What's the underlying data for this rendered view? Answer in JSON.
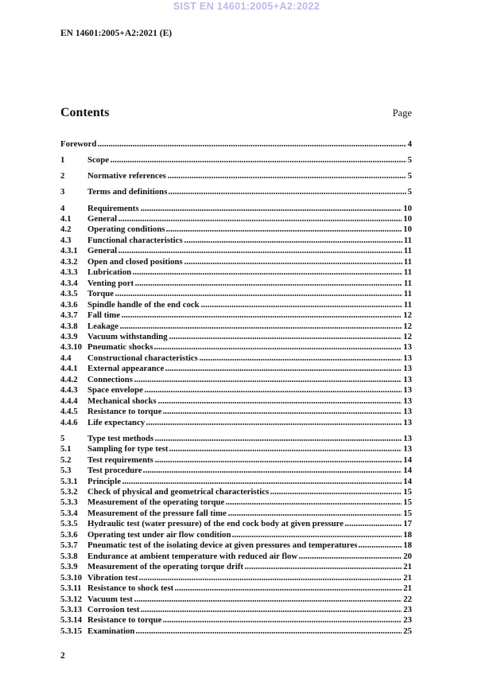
{
  "watermark": "SIST EN 14601:2005+A2:2022",
  "header": "EN 14601:2005+A2:2021 (E)",
  "contents_heading": {
    "title": "Contents",
    "page_label": "Page"
  },
  "footer": {
    "page_number": "2"
  },
  "toc": [
    {
      "num": "",
      "title": "Foreword",
      "page": "4"
    },
    {
      "num": "1",
      "title": "Scope",
      "page": "5"
    },
    {
      "num": "2",
      "title": "Normative references",
      "page": "5"
    },
    {
      "num": "3",
      "title": "Terms and definitions",
      "page": "5"
    },
    {
      "num": "4",
      "title": "Requirements",
      "page": "10"
    },
    {
      "num": "4.1",
      "title": "General",
      "page": "10"
    },
    {
      "num": "4.2",
      "title": "Operating conditions",
      "page": "10"
    },
    {
      "num": "4.3",
      "title": "Functional characteristics",
      "page": "11"
    },
    {
      "num": "4.3.1",
      "title": "General",
      "page": "11"
    },
    {
      "num": "4.3.2",
      "title": "Open and closed positions",
      "page": "11"
    },
    {
      "num": "4.3.3",
      "title": "Lubrication",
      "page": "11"
    },
    {
      "num": "4.3.4",
      "title": "Venting port",
      "page": "11"
    },
    {
      "num": "4.3.5",
      "title": "Torque",
      "page": "11"
    },
    {
      "num": "4.3.6",
      "title": "Spindle handle of the end cock",
      "page": "11"
    },
    {
      "num": "4.3.7",
      "title": "Fall time",
      "page": "12"
    },
    {
      "num": "4.3.8",
      "title": "Leakage",
      "page": "12"
    },
    {
      "num": "4.3.9",
      "title": "Vacuum withstanding",
      "page": "12"
    },
    {
      "num": "4.3.10",
      "title": "Pneumatic shocks",
      "page": "13"
    },
    {
      "num": "4.4",
      "title": "Constructional characteristics",
      "page": "13"
    },
    {
      "num": "4.4.1",
      "title": "External appearance",
      "page": "13"
    },
    {
      "num": "4.4.2",
      "title": "Connections",
      "page": "13"
    },
    {
      "num": "4.4.3",
      "title": "Space envelope",
      "page": "13"
    },
    {
      "num": "4.4.4",
      "title": "Mechanical shocks",
      "page": "13"
    },
    {
      "num": "4.4.5",
      "title": "Resistance to torque",
      "page": "13"
    },
    {
      "num": "4.4.6",
      "title": "Life expectancy",
      "page": "13"
    },
    {
      "num": "5",
      "title": "Type test methods",
      "page": "13"
    },
    {
      "num": "5.1",
      "title": "Sampling for type test",
      "page": "13"
    },
    {
      "num": "5.2",
      "title": "Test requirements",
      "page": "14"
    },
    {
      "num": "5.3",
      "title": "Test procedure",
      "page": "14"
    },
    {
      "num": "5.3.1",
      "title": "Principle",
      "page": "14"
    },
    {
      "num": "5.3.2",
      "title": "Check of physical and geometrical characteristics",
      "page": "15"
    },
    {
      "num": "5.3.3",
      "title": "Measurement of the operating torque",
      "page": "15"
    },
    {
      "num": "5.3.4",
      "title": "Measurement of the pressure fall time",
      "page": "15"
    },
    {
      "num": "5.3.5",
      "title": "Hydraulic test (water pressure) of the end cock body at given pressure",
      "page": "17"
    },
    {
      "num": "5.3.6",
      "title": "Operating test under air flow condition",
      "page": "18"
    },
    {
      "num": "5.3.7",
      "title": "Pneumatic test of the isolating device at given pressures and temperatures",
      "page": "18"
    },
    {
      "num": "5.3.8",
      "title": "Endurance at ambient temperature with reduced air flow",
      "page": "20"
    },
    {
      "num": "5.3.9",
      "title": "Measurement of the operating torque drift",
      "page": "21"
    },
    {
      "num": "5.3.10",
      "title": "Vibration test",
      "page": "21"
    },
    {
      "num": "5.3.11",
      "title": "Resistance to shock test",
      "page": "21"
    },
    {
      "num": "5.3.12",
      "title": "Vacuum test",
      "page": "22"
    },
    {
      "num": "5.3.13",
      "title": "Corrosion test",
      "page": "23"
    },
    {
      "num": "5.3.14",
      "title": "Resistance to torque",
      "page": "23"
    },
    {
      "num": "5.3.15",
      "title": "Examination",
      "page": "25"
    }
  ],
  "colors": {
    "watermark": "#b9b9ea",
    "text": "#111111",
    "background": "#ffffff"
  }
}
